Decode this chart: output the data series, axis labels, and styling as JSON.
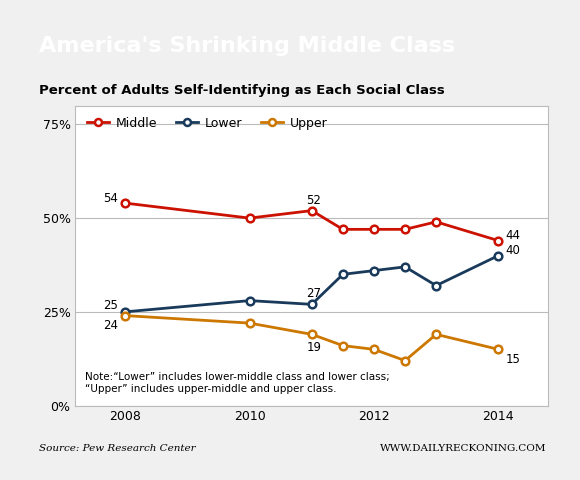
{
  "title_main": "America's Shrinking Middle Class",
  "subtitle": "Percent of Adults Self-Identifying as Each Social Class",
  "source_left": "Source: Pew Research Center",
  "source_right": "WWW.DAILYRECKONING.COM",
  "note": "Note:“Lower” includes lower-middle class and lower class;\n“Upper” includes upper-middle and upper class.",
  "years": [
    2008,
    2010,
    2011,
    2011.5,
    2012,
    2012.5,
    2013,
    2014
  ],
  "middle": [
    54,
    50,
    52,
    47,
    47,
    47,
    49,
    44
  ],
  "lower": [
    25,
    28,
    27,
    35,
    36,
    37,
    32,
    40
  ],
  "upper": [
    24,
    22,
    19,
    16,
    15,
    12,
    19,
    15
  ],
  "middle_color": "#cc1100",
  "lower_color": "#1a3a5c",
  "upper_color": "#cc7700",
  "bg_title": "#222222",
  "ylim": [
    0,
    80
  ],
  "yticks": [
    0,
    25,
    50,
    75
  ],
  "ytick_labels": [
    "0%",
    "25%",
    "50%",
    "75%"
  ],
  "xlim": [
    2007.2,
    2014.8
  ],
  "xticks": [
    2008,
    2010,
    2012,
    2014
  ],
  "border_color": "#cc1100"
}
